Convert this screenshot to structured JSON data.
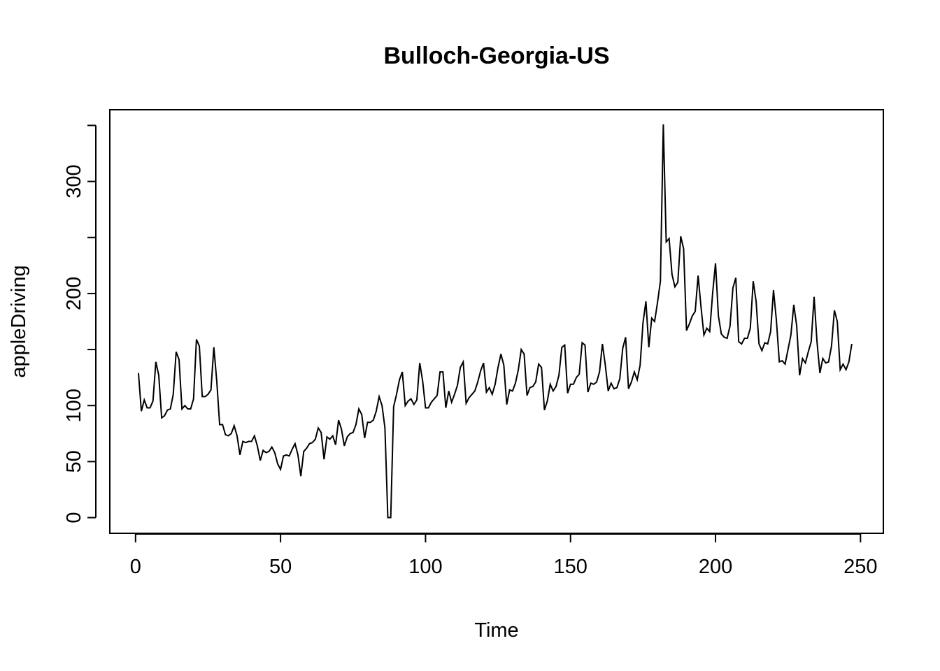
{
  "chart_data": {
    "type": "line",
    "title": "Bulloch-Georgia-US",
    "xlabel": "Time",
    "ylabel": "appleDriving",
    "xlim": [
      1,
      248
    ],
    "ylim": [
      0,
      350
    ],
    "x_ticks": [
      0,
      50,
      100,
      150,
      200,
      250
    ],
    "y_ticks": [
      0,
      50,
      100,
      150,
      200,
      250,
      300,
      350
    ],
    "y_tick_labels": [
      "0",
      "50",
      "100",
      "",
      "200",
      "",
      "300",
      ""
    ],
    "grid": false,
    "legend": "none",
    "series": [
      {
        "color": "#000000",
        "values": [
          129,
          95,
          105,
          98,
          98,
          104,
          139,
          127,
          89,
          91,
          96,
          97,
          110,
          148,
          141,
          97,
          100,
          97,
          97,
          106,
          159,
          153,
          108,
          108,
          110,
          114,
          152,
          122,
          83,
          83,
          74,
          73,
          75,
          82,
          73,
          56,
          68,
          67,
          68,
          68,
          73,
          64,
          51,
          60,
          58,
          59,
          63,
          58,
          48,
          43,
          55,
          56,
          55,
          61,
          66,
          56,
          37,
          59,
          62,
          66,
          67,
          70,
          80,
          76,
          52,
          72,
          70,
          73,
          65,
          87,
          79,
          64,
          72,
          75,
          76,
          83,
          97,
          92,
          71,
          85,
          85,
          87,
          95,
          108,
          100,
          80,
          0,
          0,
          99,
          110,
          123,
          130,
          100,
          104,
          106,
          101,
          105,
          138,
          122,
          98,
          98,
          103,
          106,
          109,
          130,
          130,
          98,
          113,
          103,
          110,
          118,
          134,
          139,
          102,
          107,
          110,
          113,
          121,
          131,
          138,
          112,
          116,
          110,
          119,
          134,
          146,
          136,
          101,
          114,
          113,
          120,
          132,
          150,
          146,
          109,
          116,
          117,
          121,
          137,
          134,
          96,
          104,
          119,
          113,
          117,
          127,
          152,
          154,
          111,
          119,
          119,
          125,
          128,
          156,
          154,
          112,
          120,
          119,
          121,
          130,
          155,
          136,
          113,
          120,
          115,
          116,
          124,
          151,
          161,
          115,
          121,
          130,
          123,
          136,
          174,
          193,
          152,
          178,
          175,
          192,
          211,
          351,
          246,
          249,
          217,
          206,
          210,
          251,
          240,
          167,
          173,
          180,
          184,
          216,
          188,
          163,
          169,
          166,
          200,
          227,
          180,
          164,
          161,
          160,
          171,
          205,
          214,
          157,
          155,
          160,
          160,
          169,
          211,
          193,
          155,
          149,
          156,
          155,
          166,
          203,
          176,
          139,
          140,
          137,
          150,
          163,
          190,
          171,
          127,
          142,
          138,
          148,
          157,
          197,
          157,
          129,
          142,
          138,
          139,
          153,
          185,
          175,
          132,
          137,
          132,
          139,
          155
        ]
      }
    ]
  }
}
